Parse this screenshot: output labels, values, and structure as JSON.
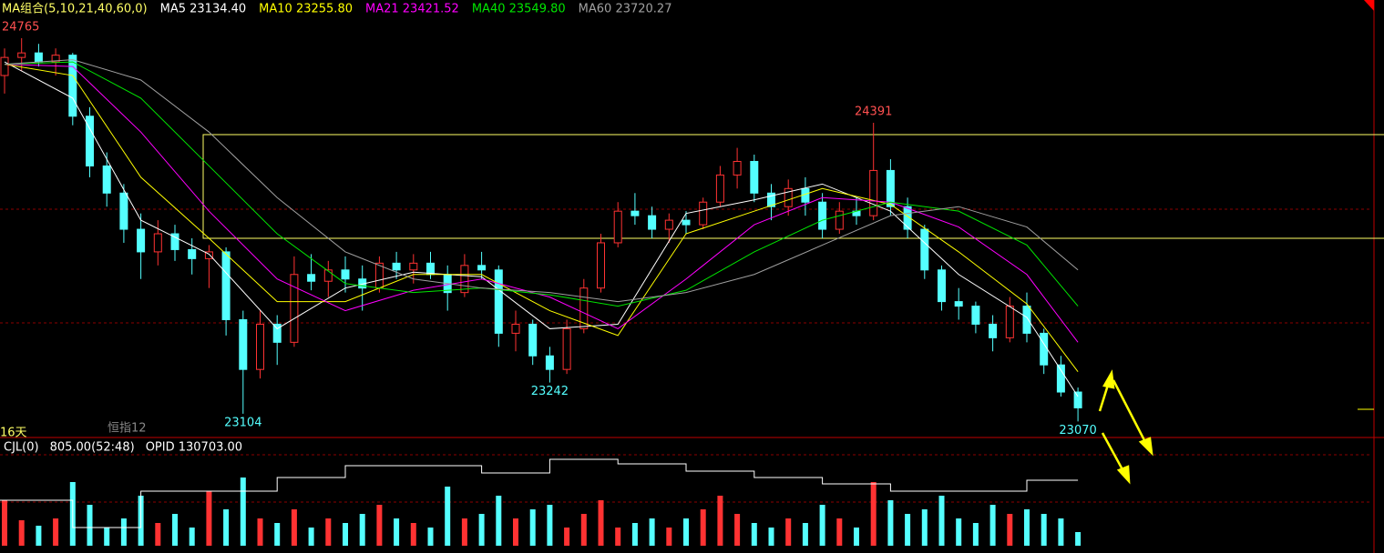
{
  "chart_data": {
    "type": "candlestick",
    "header": [
      "MA组合(5,10,21,40,60,0)"
    ],
    "ma_legend": [
      "MA5 23134.40",
      "MA10 23255.80",
      "MA21 23421.52",
      "MA40 23549.80",
      "MA60 23720.27"
    ],
    "ylim": [
      23003,
      24934
    ],
    "candles": [
      [
        24600,
        24720,
        24520,
        24680
      ],
      [
        24680,
        24765,
        24620,
        24700
      ],
      [
        24700,
        24740,
        24640,
        24660
      ],
      [
        24660,
        24720,
        24600,
        24690
      ],
      [
        24690,
        24700,
        24380,
        24420
      ],
      [
        24420,
        24460,
        24150,
        24200
      ],
      [
        24200,
        24260,
        24020,
        24080
      ],
      [
        24080,
        24120,
        23860,
        23920
      ],
      [
        23920,
        23990,
        23700,
        23820
      ],
      [
        23820,
        23960,
        23760,
        23900
      ],
      [
        23900,
        23940,
        23780,
        23830
      ],
      [
        23830,
        23880,
        23720,
        23790
      ],
      [
        23790,
        23850,
        23660,
        23820
      ],
      [
        23820,
        23840,
        23450,
        23520
      ],
      [
        23520,
        23560,
        23104,
        23300
      ],
      [
        23300,
        23560,
        23260,
        23500
      ],
      [
        23500,
        23540,
        23320,
        23420
      ],
      [
        23420,
        23800,
        23400,
        23720
      ],
      [
        23720,
        23810,
        23650,
        23690
      ],
      [
        23690,
        23780,
        23620,
        23740
      ],
      [
        23740,
        23800,
        23640,
        23700
      ],
      [
        23700,
        23760,
        23560,
        23660
      ],
      [
        23660,
        23800,
        23640,
        23770
      ],
      [
        23770,
        23820,
        23700,
        23740
      ],
      [
        23740,
        23810,
        23680,
        23770
      ],
      [
        23770,
        23820,
        23700,
        23720
      ],
      [
        23720,
        23760,
        23560,
        23640
      ],
      [
        23640,
        23810,
        23620,
        23760
      ],
      [
        23760,
        23820,
        23700,
        23740
      ],
      [
        23740,
        23760,
        23400,
        23460
      ],
      [
        23460,
        23560,
        23380,
        23500
      ],
      [
        23500,
        23520,
        23320,
        23360
      ],
      [
        23360,
        23400,
        23242,
        23300
      ],
      [
        23300,
        23520,
        23280,
        23480
      ],
      [
        23480,
        23700,
        23460,
        23660
      ],
      [
        23660,
        23900,
        23640,
        23860
      ],
      [
        23860,
        24040,
        23840,
        24000
      ],
      [
        24000,
        24080,
        23940,
        23980
      ],
      [
        23980,
        24020,
        23880,
        23920
      ],
      [
        23920,
        23990,
        23860,
        23960
      ],
      [
        23960,
        24000,
        23900,
        23940
      ],
      [
        23940,
        24060,
        23920,
        24040
      ],
      [
        24040,
        24200,
        24020,
        24160
      ],
      [
        24160,
        24280,
        24100,
        24220
      ],
      [
        24220,
        24250,
        24040,
        24080
      ],
      [
        24080,
        24120,
        23960,
        24020
      ],
      [
        24020,
        24140,
        23980,
        24100
      ],
      [
        24100,
        24150,
        23980,
        24040
      ],
      [
        24040,
        24080,
        23880,
        23920
      ],
      [
        23920,
        24040,
        23900,
        24000
      ],
      [
        24000,
        24060,
        23940,
        23980
      ],
      [
        23980,
        24391,
        23960,
        24180
      ],
      [
        24180,
        24230,
        23980,
        24020
      ],
      [
        24020,
        24060,
        23880,
        23920
      ],
      [
        23920,
        23940,
        23700,
        23740
      ],
      [
        23740,
        23760,
        23560,
        23600
      ],
      [
        23600,
        23660,
        23520,
        23580
      ],
      [
        23580,
        23600,
        23460,
        23500
      ],
      [
        23500,
        23540,
        23380,
        23440
      ],
      [
        23440,
        23620,
        23420,
        23580
      ],
      [
        23580,
        23640,
        23420,
        23460
      ],
      [
        23460,
        23480,
        23280,
        23320
      ],
      [
        23320,
        23360,
        23180,
        23200
      ],
      [
        23200,
        23220,
        23070,
        23130
      ]
    ],
    "up_color": "#ff3232",
    "down_color": "#54ffff",
    "ma_x": [
      0,
      4,
      8,
      12,
      16,
      20,
      24,
      28,
      32,
      36,
      40,
      44,
      48,
      52,
      56,
      60,
      63
    ],
    "series": [
      {
        "name": "MA5",
        "color": "#ffffff",
        "values": [
          24660,
          24500,
          23960,
          23810,
          23480,
          23660,
          23730,
          23710,
          23480,
          23500,
          23990,
          24050,
          24120,
          24000,
          23720,
          23530,
          23180
        ]
      },
      {
        "name": "MA10",
        "color": "#ffff00",
        "values": [
          24650,
          24600,
          24150,
          23880,
          23600,
          23600,
          23720,
          23720,
          23560,
          23450,
          23900,
          24000,
          24100,
          24030,
          23820,
          23590,
          23290
        ]
      },
      {
        "name": "MA21",
        "color": "#ff00ff",
        "values": [
          24650,
          24640,
          24350,
          24000,
          23700,
          23560,
          23650,
          23700,
          23620,
          23480,
          23700,
          23940,
          24060,
          24040,
          23930,
          23720,
          23420
        ]
      },
      {
        "name": "MA40",
        "color": "#00e600",
        "values": [
          24650,
          24660,
          24500,
          24200,
          23900,
          23680,
          23640,
          23660,
          23630,
          23580,
          23650,
          23820,
          23960,
          24040,
          24000,
          23850,
          23580
        ]
      },
      {
        "name": "MA60",
        "color": "#a0a0a0",
        "values": [
          24650,
          24670,
          24580,
          24350,
          24060,
          23820,
          23700,
          23660,
          23640,
          23600,
          23640,
          23720,
          23850,
          23980,
          24020,
          23930,
          23740
        ]
      }
    ],
    "annotations": [
      24765,
      24391,
      23104,
      23242,
      23070
    ],
    "period_label": "16天",
    "index_label": "恒指12",
    "volume_header": [
      "CJL(0)",
      "805.00(52:48)",
      "OPID 130703.00"
    ],
    "volume_ylim": [
      0,
      100
    ],
    "volumes": [
      50,
      28,
      22,
      30,
      70,
      45,
      20,
      30,
      55,
      25,
      35,
      20,
      60,
      40,
      75,
      30,
      25,
      40,
      20,
      30,
      25,
      35,
      45,
      30,
      25,
      20,
      65,
      30,
      35,
      55,
      30,
      40,
      45,
      20,
      35,
      50,
      20,
      25,
      30,
      20,
      30,
      40,
      55,
      35,
      25,
      20,
      30,
      25,
      45,
      30,
      20,
      70,
      50,
      35,
      40,
      55,
      30,
      25,
      45,
      35,
      40,
      35,
      30,
      15
    ],
    "opid": [
      50,
      20,
      60,
      60,
      75,
      88,
      88,
      80,
      95,
      90,
      82,
      75,
      68,
      60,
      60,
      72,
      72
    ]
  }
}
